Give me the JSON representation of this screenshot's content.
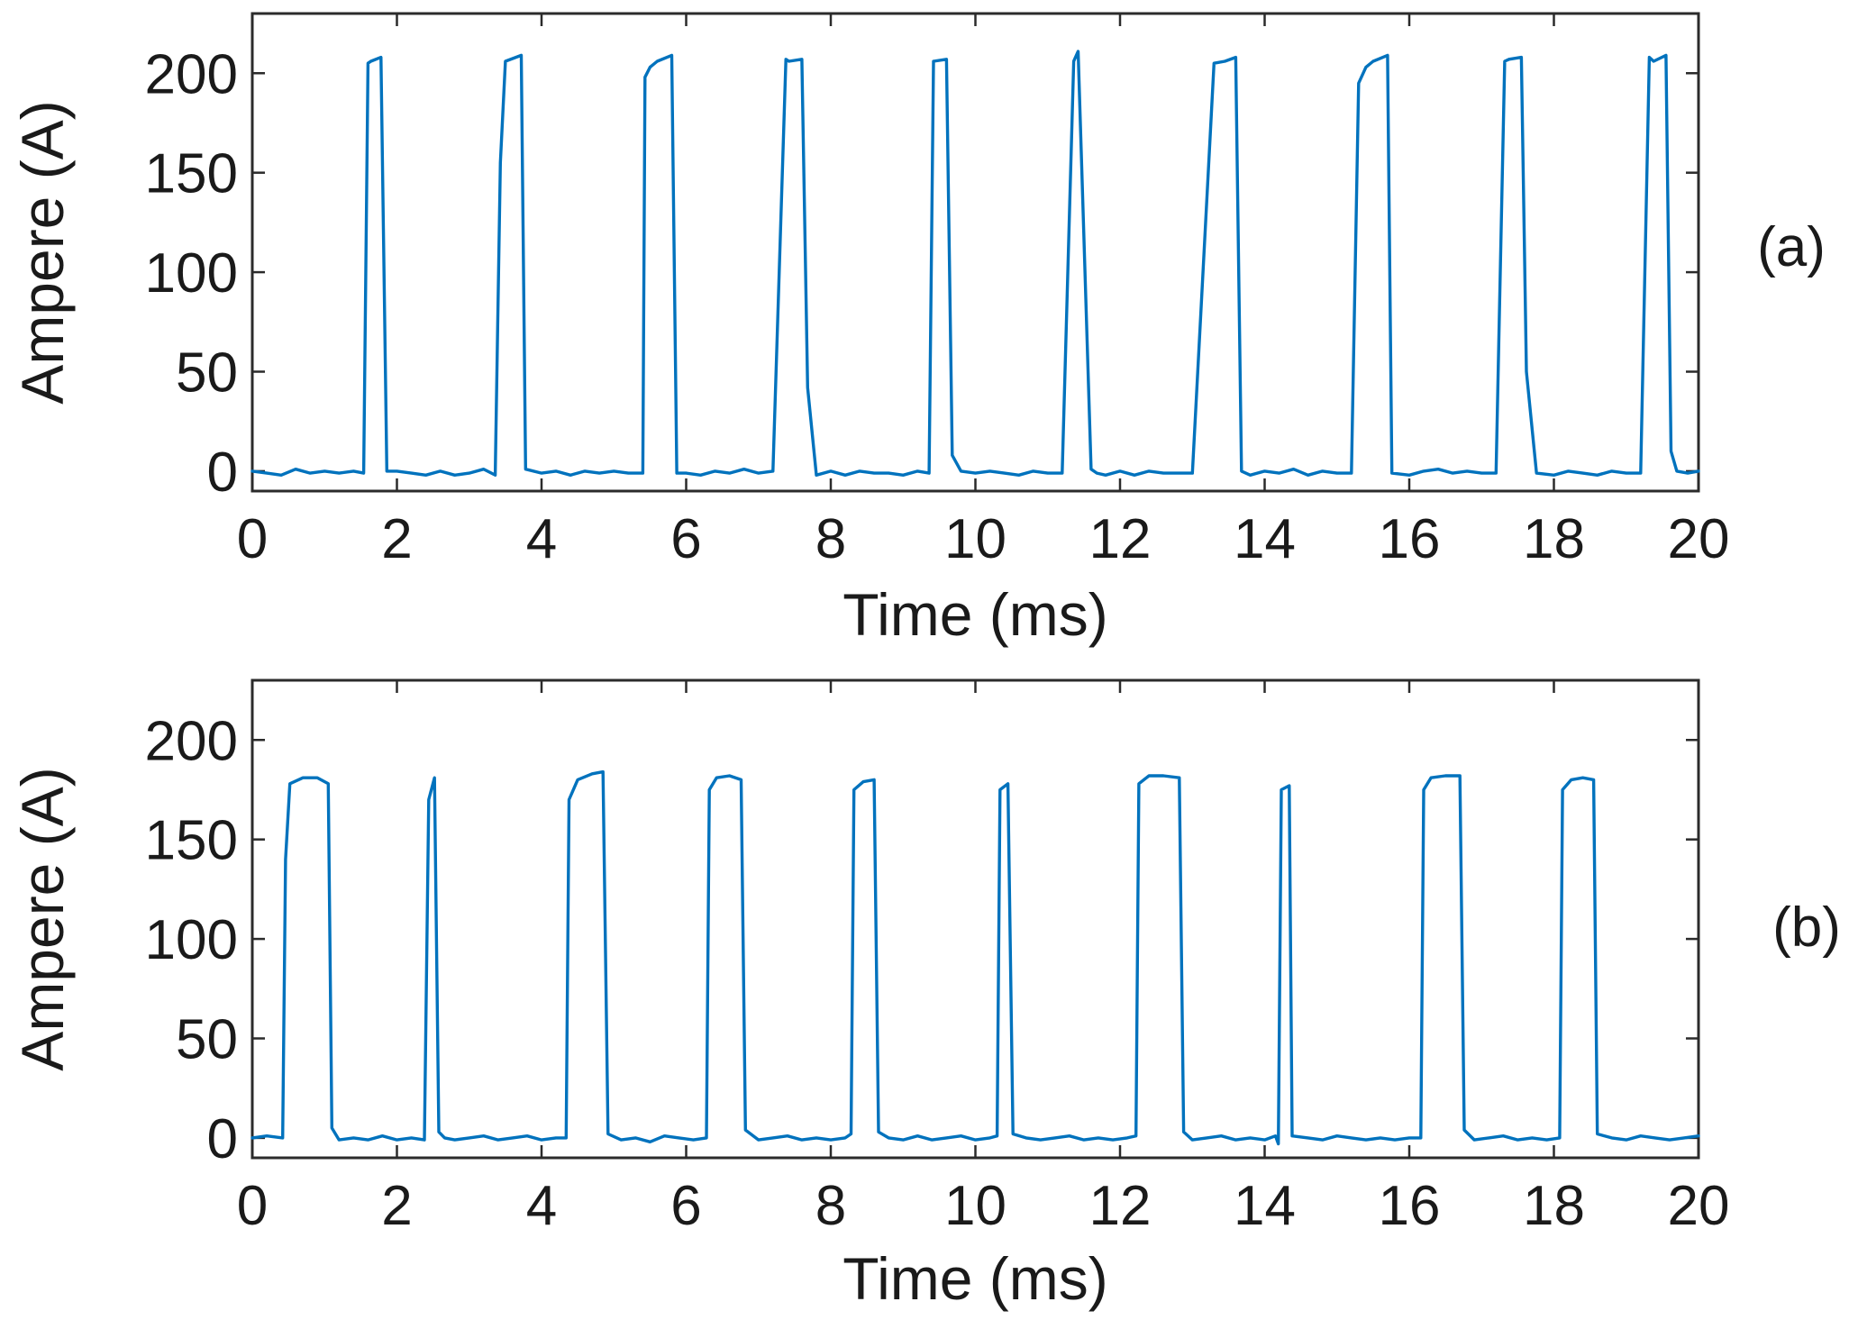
{
  "chart_data": [
    {
      "type": "line",
      "panel_label": "(a)",
      "xlabel": "Time (ms)",
      "ylabel": "Ampere (A)",
      "xlim": [
        0,
        20
      ],
      "ylim": [
        -10,
        230
      ],
      "xticks": [
        0,
        2,
        4,
        6,
        8,
        10,
        12,
        14,
        16,
        18,
        20
      ],
      "yticks": [
        0,
        50,
        100,
        150,
        200
      ],
      "grid": false,
      "line_color": "#0072BD",
      "series": [
        {
          "x": [
            0,
            0.2,
            0.4,
            0.6,
            0.8,
            1.0,
            1.2,
            1.4,
            1.54,
            1.6,
            1.64,
            1.78,
            1.86,
            2.0,
            2.2,
            2.4,
            2.6,
            2.8,
            3.0,
            3.2,
            3.36,
            3.43,
            3.5,
            3.72,
            3.78,
            4.0,
            4.2,
            4.4,
            4.6,
            4.8,
            5.0,
            5.2,
            5.4,
            5.43,
            5.5,
            5.6,
            5.8,
            5.87,
            6.0,
            6.2,
            6.4,
            6.6,
            6.8,
            7.0,
            7.2,
            7.38,
            7.42,
            7.6,
            7.68,
            7.8,
            8.0,
            8.2,
            8.4,
            8.6,
            8.8,
            9.0,
            9.2,
            9.36,
            9.42,
            9.6,
            9.68,
            9.8,
            10.0,
            10.2,
            10.4,
            10.6,
            10.8,
            11.0,
            11.2,
            11.36,
            11.42,
            11.6,
            11.68,
            11.8,
            12.0,
            12.2,
            12.4,
            12.6,
            12.8,
            13.0,
            13.22,
            13.3,
            13.45,
            13.6,
            13.68,
            13.8,
            14.0,
            14.2,
            14.4,
            14.6,
            14.8,
            15.0,
            15.2,
            15.3,
            15.4,
            15.5,
            15.7,
            15.76,
            16.0,
            16.2,
            16.4,
            16.6,
            16.8,
            17.0,
            17.2,
            17.32,
            17.38,
            17.55,
            17.62,
            17.76,
            18.0,
            18.2,
            18.4,
            18.6,
            18.8,
            19.0,
            19.2,
            19.32,
            19.38,
            19.55,
            19.62,
            19.7,
            19.85,
            20.0
          ],
          "y": [
            0,
            -1,
            -2,
            1,
            -1,
            0,
            -1,
            0,
            -1,
            205,
            206,
            208,
            0,
            0,
            -1,
            -2,
            0,
            -2,
            -1,
            1,
            -2,
            155,
            206,
            209,
            1,
            -1,
            0,
            -2,
            0,
            -1,
            0,
            -1,
            -1,
            198,
            203,
            206,
            209,
            -1,
            -1,
            -2,
            0,
            -1,
            1,
            -1,
            0,
            207,
            206,
            207,
            42,
            -2,
            0,
            -2,
            0,
            -1,
            -1,
            -2,
            0,
            -1,
            206,
            207,
            8,
            0,
            -1,
            0,
            -1,
            -2,
            0,
            -1,
            -1,
            206,
            211,
            1,
            -1,
            -2,
            0,
            -2,
            0,
            -1,
            -1,
            -1,
            150,
            205,
            206,
            208,
            0,
            -2,
            0,
            -1,
            1,
            -2,
            0,
            -1,
            -1,
            195,
            203,
            206,
            209,
            -1,
            -2,
            0,
            1,
            -1,
            0,
            -1,
            -1,
            206,
            207,
            208,
            50,
            -1,
            -2,
            0,
            -1,
            -2,
            0,
            -1,
            -1,
            208,
            206,
            209,
            10,
            0,
            -1,
            0
          ]
        }
      ]
    },
    {
      "type": "line",
      "panel_label": "(b)",
      "xlabel": "Time (ms)",
      "ylabel": "Ampere (A)",
      "xlim": [
        0,
        20
      ],
      "ylim": [
        -10,
        230
      ],
      "xticks": [
        0,
        2,
        4,
        6,
        8,
        10,
        12,
        14,
        16,
        18,
        20
      ],
      "yticks": [
        0,
        50,
        100,
        150,
        200
      ],
      "grid": false,
      "line_color": "#0072BD",
      "series": [
        {
          "x": [
            0,
            0.2,
            0.42,
            0.46,
            0.52,
            0.7,
            0.9,
            1.05,
            1.1,
            1.2,
            1.4,
            1.6,
            1.8,
            2.0,
            2.2,
            2.38,
            2.44,
            2.52,
            2.58,
            2.66,
            2.8,
            3.0,
            3.2,
            3.4,
            3.6,
            3.8,
            4.0,
            4.2,
            4.34,
            4.38,
            4.5,
            4.7,
            4.85,
            4.92,
            5.1,
            5.3,
            5.5,
            5.7,
            5.9,
            6.1,
            6.28,
            6.32,
            6.42,
            6.6,
            6.76,
            6.82,
            7.0,
            7.2,
            7.4,
            7.6,
            7.8,
            8.0,
            8.2,
            8.28,
            8.32,
            8.45,
            8.6,
            8.66,
            8.8,
            9.0,
            9.2,
            9.4,
            9.6,
            9.8,
            10.0,
            10.2,
            10.3,
            10.34,
            10.45,
            10.52,
            10.7,
            10.9,
            11.1,
            11.3,
            11.5,
            11.7,
            11.9,
            12.1,
            12.22,
            12.26,
            12.4,
            12.6,
            12.82,
            12.88,
            13.0,
            13.2,
            13.4,
            13.6,
            13.8,
            14.0,
            14.15,
            14.19,
            14.23,
            14.34,
            14.38,
            14.6,
            14.8,
            15.0,
            15.2,
            15.4,
            15.6,
            15.8,
            16.0,
            16.16,
            16.2,
            16.3,
            16.5,
            16.7,
            16.76,
            16.9,
            17.1,
            17.3,
            17.5,
            17.7,
            17.9,
            18.08,
            18.12,
            18.24,
            18.4,
            18.55,
            18.6,
            18.8,
            19.0,
            19.2,
            19.4,
            19.6,
            19.8,
            20.0
          ],
          "y": [
            0,
            1,
            0,
            140,
            178,
            181,
            181,
            178,
            5,
            -1,
            0,
            -1,
            1,
            -1,
            0,
            -1,
            170,
            181,
            3,
            0,
            -1,
            0,
            1,
            -1,
            0,
            1,
            -1,
            0,
            0,
            170,
            180,
            183,
            184,
            2,
            -1,
            0,
            -2,
            1,
            0,
            -1,
            0,
            175,
            181,
            182,
            180,
            4,
            -1,
            0,
            1,
            -1,
            0,
            -1,
            0,
            2,
            175,
            179,
            180,
            3,
            0,
            -1,
            1,
            -1,
            0,
            1,
            -1,
            0,
            1,
            175,
            178,
            2,
            0,
            -1,
            0,
            1,
            -1,
            0,
            -1,
            0,
            1,
            178,
            182,
            182,
            181,
            3,
            -1,
            0,
            1,
            -1,
            0,
            -1,
            1,
            -3,
            175,
            177,
            1,
            0,
            -1,
            1,
            0,
            -1,
            0,
            -1,
            0,
            0,
            175,
            181,
            182,
            182,
            4,
            -1,
            0,
            1,
            -1,
            0,
            -1,
            0,
            175,
            180,
            181,
            180,
            2,
            0,
            -1,
            1,
            0,
            -1,
            0,
            1
          ]
        }
      ]
    }
  ]
}
